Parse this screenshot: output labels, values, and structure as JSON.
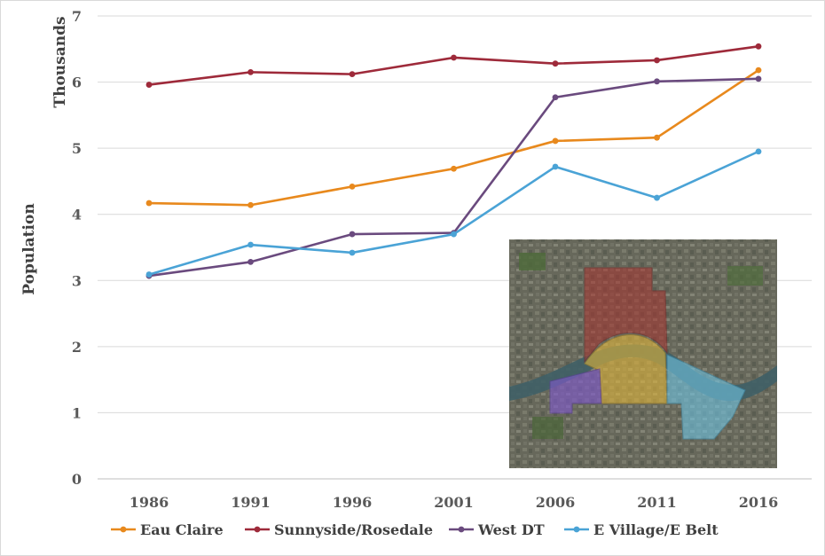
{
  "chart_data": {
    "type": "line",
    "categories": [
      "1986",
      "1991",
      "1996",
      "2001",
      "2006",
      "2011",
      "2016"
    ],
    "series": [
      {
        "name": "Eau Claire",
        "color": "#e8891d",
        "values": [
          4.17,
          4.14,
          4.42,
          4.69,
          5.11,
          5.16,
          6.18
        ]
      },
      {
        "name": "Sunnyside/Rosedale",
        "color": "#9e2a3a",
        "values": [
          5.96,
          6.15,
          6.12,
          6.37,
          6.28,
          6.33,
          6.54
        ]
      },
      {
        "name": "West DT",
        "color": "#6a4a7e",
        "values": [
          3.07,
          3.28,
          3.7,
          3.72,
          5.77,
          6.01,
          6.05
        ]
      },
      {
        "name": "E Village/E Belt",
        "color": "#4aa3d6",
        "values": [
          3.09,
          3.54,
          3.42,
          3.7,
          4.72,
          4.25,
          4.95
        ]
      }
    ],
    "ylabel": "Population",
    "yunit": "Thousands",
    "ylim": [
      0,
      7
    ],
    "yticks": [
      "0",
      "1",
      "2",
      "3",
      "4",
      "5",
      "6",
      "7"
    ],
    "grid": true,
    "legend": "bottom"
  }
}
